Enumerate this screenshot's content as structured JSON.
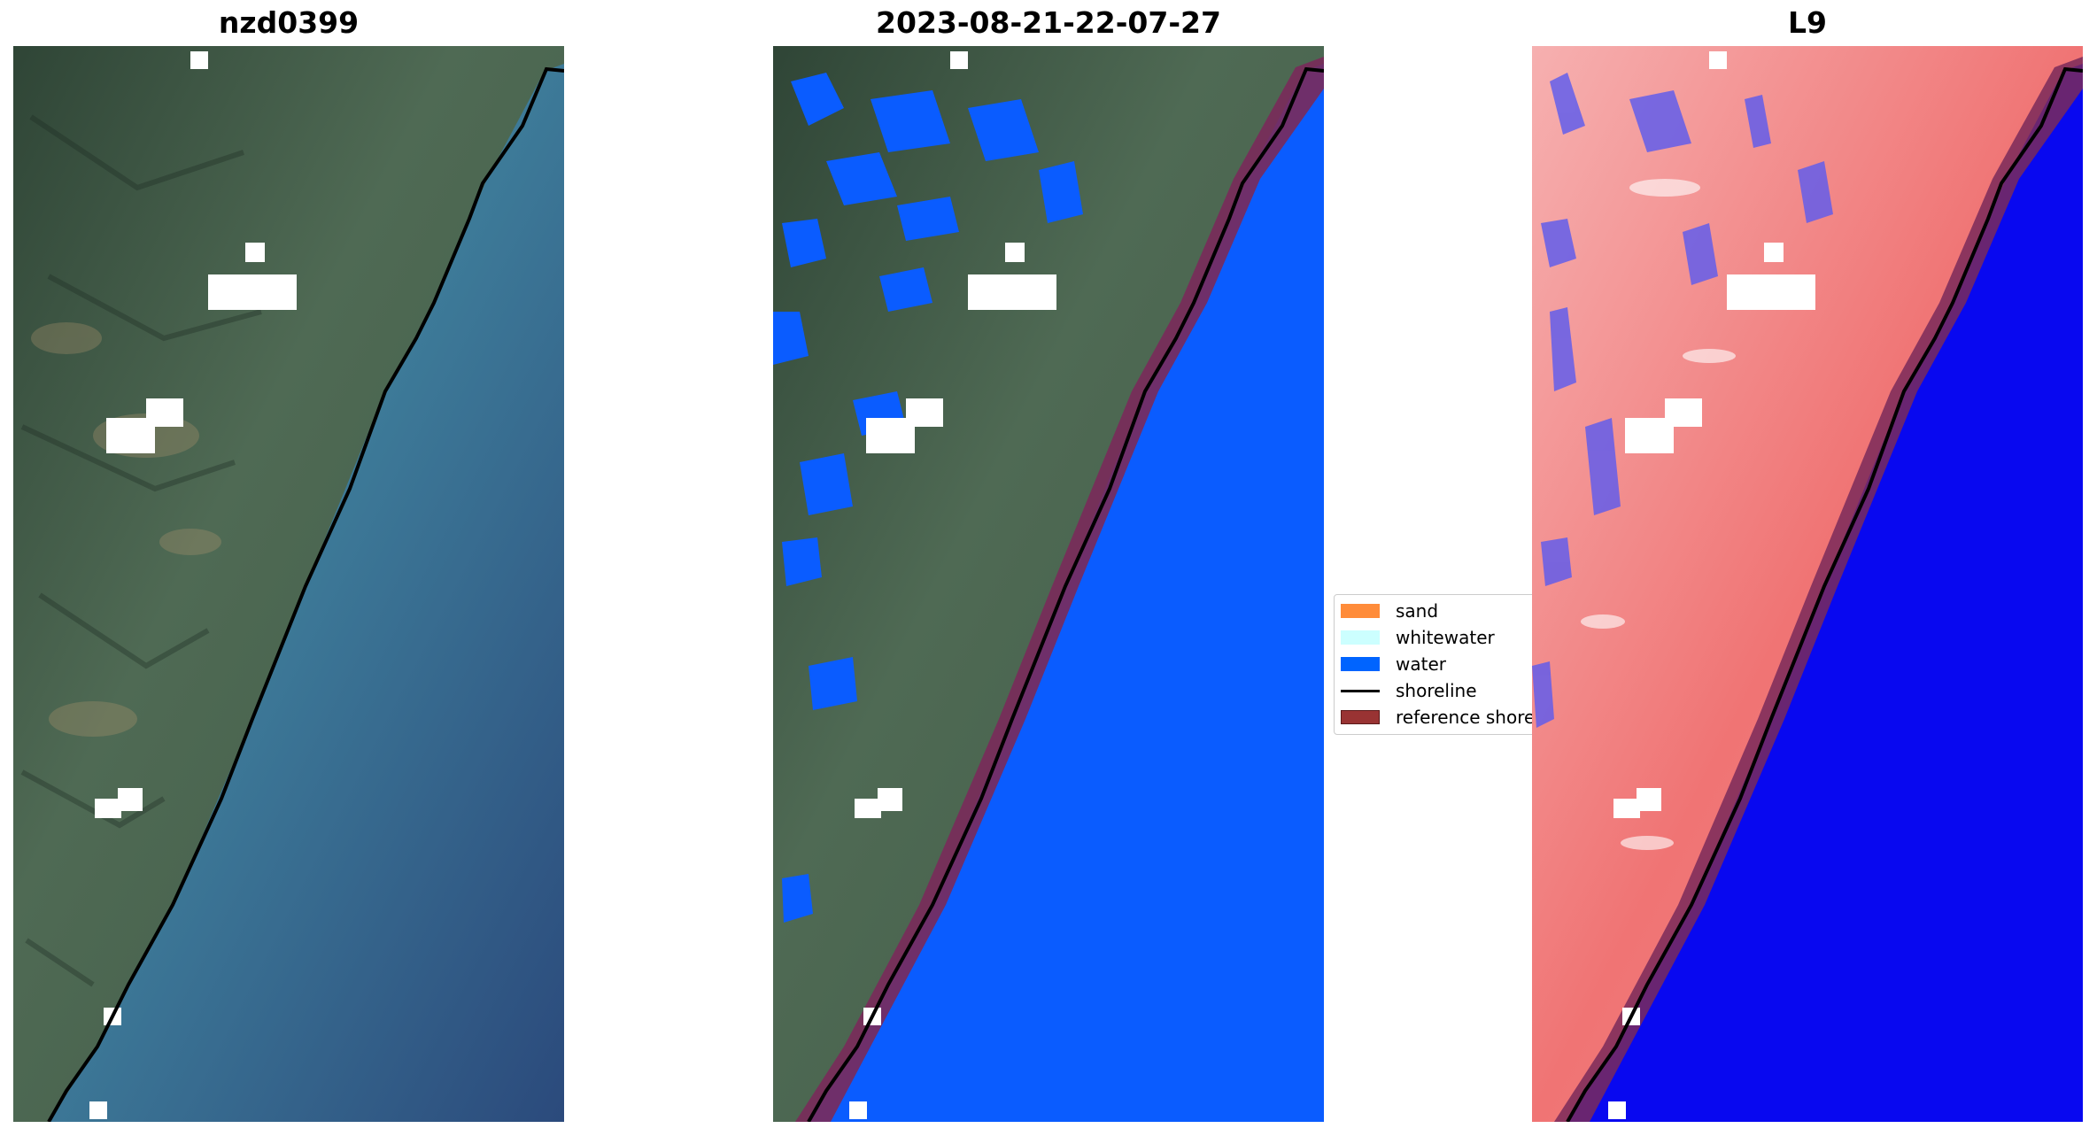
{
  "panels": [
    {
      "title": "nzd0399"
    },
    {
      "title": "2023-08-21-22-07-27"
    },
    {
      "title": "L9"
    }
  ],
  "legend": {
    "items": [
      {
        "label": "sand",
        "color": "#ff8c3a",
        "kind": "patch"
      },
      {
        "label": "whitewater",
        "color": "#ccffff",
        "kind": "patch"
      },
      {
        "label": "water",
        "color": "#0064ff",
        "kind": "patch"
      },
      {
        "label": "shoreline",
        "color": "#000000",
        "kind": "line"
      },
      {
        "label": "reference shoreline buffer",
        "color": "#993333",
        "kind": "patch"
      }
    ]
  },
  "colors": {
    "land": "#4a5e4a",
    "sea_shallow": "#4f9aa6",
    "sea_deep": "#2b4f7e",
    "water_class": "#0a5cff",
    "buffer": "#7a2a5a",
    "index_land": "#f07474",
    "index_water": "#0808f0"
  }
}
